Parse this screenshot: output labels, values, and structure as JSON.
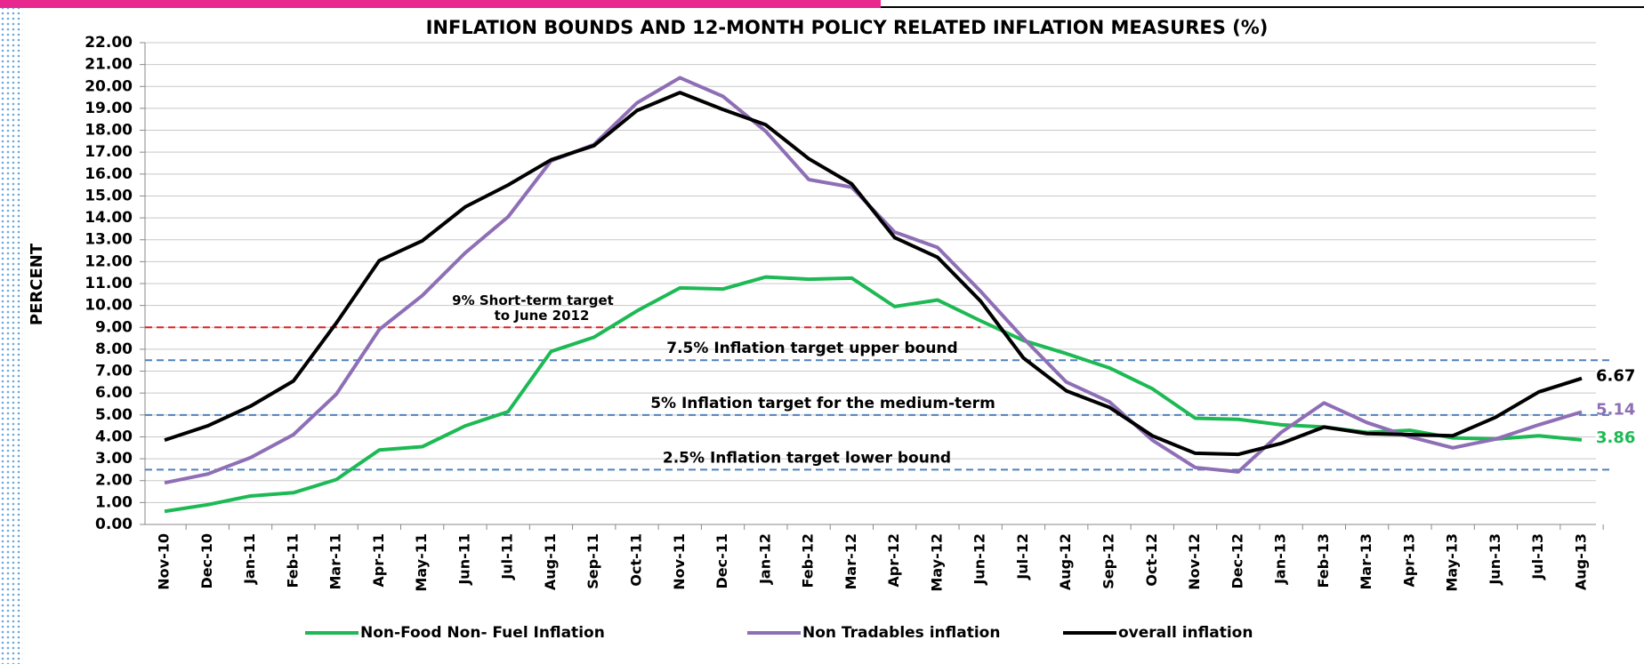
{
  "chart_data": {
    "type": "line",
    "title": "INFLATION BOUNDS AND 12-MONTH POLICY RELATED INFLATION MEASURES (%)",
    "y_label": "PERCENT",
    "categories": [
      "Nov-10",
      "Dec-10",
      "Jan-11",
      "Feb-11",
      "Mar-11",
      "Apr-11",
      "May-11",
      "Jun-11",
      "Jul-11",
      "Aug-11",
      "Sep-11",
      "Oct-11",
      "Nov-11",
      "Dec-11",
      "Jan-12",
      "Feb-12",
      "Mar-12",
      "Apr-12",
      "May-12",
      "Jun-12",
      "Jul-12",
      "Aug-12",
      "Sep-12",
      "Oct-12",
      "Nov-12",
      "Dec-12",
      "Jan-13",
      "Feb-13",
      "Mar-13",
      "Apr-13",
      "May-13",
      "Jun-13",
      "Jul-13",
      "Aug-13"
    ],
    "series": [
      {
        "name": "Non-Food Non- Fuel Inflation",
        "color": "#1db954",
        "values": [
          0.6,
          0.9,
          1.3,
          1.45,
          2.05,
          3.4,
          3.55,
          4.5,
          5.15,
          7.9,
          8.55,
          9.75,
          10.8,
          10.75,
          11.3,
          11.2,
          11.25,
          9.95,
          10.25,
          9.3,
          8.4,
          7.8,
          7.15,
          6.2,
          4.85,
          4.8,
          4.55,
          4.45,
          4.2,
          4.3,
          3.95,
          3.9,
          4.05,
          3.86
        ]
      },
      {
        "name": "Non Tradables inflation",
        "color": "#8e6fb5",
        "values": [
          1.9,
          2.3,
          3.05,
          4.1,
          5.95,
          8.9,
          10.45,
          12.4,
          14.05,
          16.6,
          17.35,
          19.25,
          20.4,
          19.55,
          17.95,
          15.75,
          15.4,
          13.35,
          12.65,
          10.65,
          8.5,
          6.5,
          5.6,
          3.85,
          2.6,
          2.4,
          4.2,
          5.55,
          4.65,
          4.0,
          3.5,
          3.9,
          4.55,
          5.14
        ]
      },
      {
        "name": "overall inflation",
        "color": "#000000",
        "values": [
          3.85,
          4.5,
          5.4,
          6.55,
          9.2,
          12.05,
          12.95,
          14.5,
          15.5,
          16.65,
          17.3,
          18.9,
          19.72,
          18.95,
          18.25,
          16.7,
          15.55,
          13.1,
          12.2,
          10.2,
          7.6,
          6.1,
          5.35,
          4.05,
          3.25,
          3.2,
          3.7,
          4.45,
          4.15,
          4.1,
          4.05,
          4.9,
          6.05,
          6.67
        ]
      }
    ],
    "reference_lines": [
      {
        "value": 9,
        "color": "#e02020",
        "until": "Jun-12",
        "label_lines": [
          "9%  Short-term  target",
          "to June 2012"
        ]
      },
      {
        "value": 7.5,
        "color": "#4f81bd",
        "label_lines": [
          "7.5% Inflation target upper bound"
        ]
      },
      {
        "value": 5,
        "color": "#4f81bd",
        "label_lines": [
          "5% Inflation target for the medium-term"
        ]
      },
      {
        "value": 2.5,
        "color": "#4f81bd",
        "label_lines": [
          "2.5% Inflation target lower bound"
        ]
      }
    ],
    "ylim": [
      0,
      22
    ],
    "yticks": [
      {
        "value": 0,
        "label": "0.00"
      },
      {
        "value": 1,
        "label": "1.00"
      },
      {
        "value": 2,
        "label": "2.00"
      },
      {
        "value": 3,
        "label": "3.00"
      },
      {
        "value": 4,
        "label": "4.00"
      },
      {
        "value": 5,
        "label": "5.00"
      },
      {
        "value": 6,
        "label": "6.00"
      },
      {
        "value": 7,
        "label": "7.00"
      },
      {
        "value": 8,
        "label": "8.00"
      },
      {
        "value": 9,
        "label": "9.00"
      },
      {
        "value": 10,
        "label": "10.00"
      },
      {
        "value": 11,
        "label": "11.00"
      },
      {
        "value": 12,
        "label": "12.00"
      },
      {
        "value": 13,
        "label": "13.00"
      },
      {
        "value": 14,
        "label": "14.00"
      },
      {
        "value": 15,
        "label": "15.00"
      },
      {
        "value": 16,
        "label": "16.00"
      },
      {
        "value": 17,
        "label": "17.00"
      },
      {
        "value": 18,
        "label": "18.00"
      },
      {
        "value": 19,
        "label": "19.00"
      },
      {
        "value": 20,
        "label": "20.00"
      },
      {
        "value": 21,
        "label": "21.00"
      },
      {
        "value": 22,
        "label": "22.00"
      }
    ],
    "grid": true,
    "legend": "bottom"
  }
}
